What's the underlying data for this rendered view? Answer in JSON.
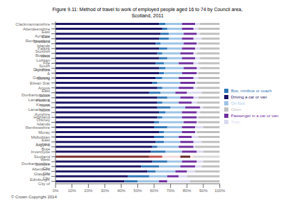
{
  "chart_data": {
    "type": "bar",
    "orientation": "horizontal",
    "stacked": true,
    "grid": false,
    "legend": "right",
    "title": "Figure 9.11: Method of travel to work of employed people aged 16 to 74 by Council area,\nScotland, 2011",
    "annotations": [
      "© Crown Copyright 2014"
    ],
    "categories": [
      "Clackmannanshire",
      "Aberdeenshire",
      "East Ayrshire",
      "East Renfrewshire",
      "Shetland Islands",
      "Falkirk",
      "Scottish Borders",
      "West Lothian",
      "Fife",
      "South Ayrshire",
      "Dumfries & Galloway",
      "Stirling",
      "Eilean Siar",
      "Angus",
      "East Dunbartonshire",
      "South Lanarkshire",
      "Perth & Kinross",
      "North Lanarkshire",
      "North Ayrshire",
      "Highland",
      "Orkney Islands",
      "Renfrewshire",
      "Moray",
      "Midlothian",
      "East Lothian",
      "Argyll & Bute",
      "Inverclyde",
      "Scotland",
      "West Dunbartonshire",
      "Dundee City",
      "Aberdeen City",
      "Glasgow City",
      "Edinburgh, City of"
    ],
    "series": [
      {
        "name": "Driving a car or van",
        "color": "#1b1464",
        "colors": [
          "#1b1464",
          "#1b1464",
          "#1b1464",
          "#1b1464",
          "#1b1464",
          "#1b1464",
          "#1b1464",
          "#1b1464",
          "#1b1464",
          "#1b1464",
          "#1b1464",
          "#1b1464",
          "#1b1464",
          "#1b1464",
          "#1b1464",
          "#1b1464",
          "#1b1464",
          "#1b1464",
          "#1b1464",
          "#1b1464",
          "#1b1464",
          "#1b1464",
          "#1b1464",
          "#1b1464",
          "#1b1464",
          "#1b1464",
          "#1b1464",
          "#7b2c2c",
          "#1b1464",
          "#1b1464",
          "#1b1464",
          "#1b1464",
          "#1b1464"
        ],
        "values": [
          63,
          65,
          64,
          63,
          61,
          63,
          62,
          63,
          61,
          63,
          63,
          61,
          59,
          62,
          57,
          62,
          62,
          62,
          63,
          62,
          60,
          60,
          63,
          60,
          61,
          59,
          58,
          57,
          59,
          52,
          56,
          44,
          42
        ]
      },
      {
        "name": "Bus, minibus or coach",
        "color": "#2e75b6",
        "colors": [
          "#2e75b6",
          "#2e75b6",
          "#2e75b6",
          "#2e75b6",
          "#2e75b6",
          "#2e75b6",
          "#2e75b6",
          "#2e75b6",
          "#2e75b6",
          "#2e75b6",
          "#2e75b6",
          "#2e75b6",
          "#2e75b6",
          "#2e75b6",
          "#2e75b6",
          "#2e75b6",
          "#2e75b6",
          "#2e75b6",
          "#2e75b6",
          "#2e75b6",
          "#2e75b6",
          "#2e75b6",
          "#2e75b6",
          "#2e75b6",
          "#2e75b6",
          "#2e75b6",
          "#2e75b6",
          "#c0504d",
          "#2e75b6",
          "#2e75b6",
          "#2e75b6",
          "#2e75b6",
          "#2e75b6"
        ],
        "values": [
          4,
          3,
          5,
          6,
          3,
          5,
          3,
          5,
          5,
          4,
          3,
          4,
          3,
          3,
          7,
          6,
          3,
          8,
          4,
          3,
          3,
          8,
          3,
          6,
          5,
          3,
          9,
          8,
          9,
          11,
          5,
          13,
          8
        ]
      },
      {
        "name": "On foot",
        "color": "#9dc3e6",
        "colors": [
          "#9dc3e6",
          "#9dc3e6",
          "#9dc3e6",
          "#9dc3e6",
          "#9dc3e6",
          "#9dc3e6",
          "#9dc3e6",
          "#9dc3e6",
          "#9dc3e6",
          "#9dc3e6",
          "#9dc3e6",
          "#9dc3e6",
          "#9dc3e6",
          "#9dc3e6",
          "#9dc3e6",
          "#9dc3e6",
          "#9dc3e6",
          "#9dc3e6",
          "#9dc3e6",
          "#9dc3e6",
          "#9dc3e6",
          "#9dc3e6",
          "#9dc3e6",
          "#9dc3e6",
          "#9dc3e6",
          "#9dc3e6",
          "#9dc3e6",
          "#f2dcdb",
          "#9dc3e6",
          "#9dc3e6",
          "#9dc3e6",
          "#9dc3e6",
          "#9dc3e6"
        ],
        "values": [
          10,
          9,
          9,
          8,
          14,
          9,
          11,
          9,
          9,
          11,
          11,
          10,
          14,
          10,
          9,
          8,
          10,
          9,
          10,
          12,
          15,
          9,
          11,
          9,
          10,
          13,
          10,
          11,
          9,
          13,
          12,
          11,
          13
        ]
      },
      {
        "name": "Passenger in a car or van",
        "color": "#7030a0",
        "colors": [
          "#7030a0",
          "#7030a0",
          "#7030a0",
          "#7030a0",
          "#7030a0",
          "#7030a0",
          "#7030a0",
          "#7030a0",
          "#7030a0",
          "#7030a0",
          "#7030a0",
          "#7030a0",
          "#7030a0",
          "#7030a0",
          "#7030a0",
          "#7030a0",
          "#7030a0",
          "#7030a0",
          "#7030a0",
          "#7030a0",
          "#7030a0",
          "#7030a0",
          "#7030a0",
          "#7030a0",
          "#7030a0",
          "#7030a0",
          "#7030a0",
          "#632523",
          "#7030a0",
          "#7030a0",
          "#7030a0",
          "#7030a0",
          "#7030a0"
        ],
        "values": [
          8,
          7,
          8,
          7,
          8,
          8,
          8,
          8,
          9,
          8,
          9,
          9,
          9,
          9,
          7,
          8,
          8,
          9,
          9,
          9,
          8,
          8,
          8,
          8,
          8,
          9,
          9,
          6,
          9,
          9,
          7,
          7,
          5
        ]
      },
      {
        "name": "Train",
        "color": "#d9d9f0",
        "colors": [
          "#d9d9f0",
          "#d9d9f0",
          "#d9d9f0",
          "#d9d9f0",
          "#d9d9f0",
          "#d9d9f0",
          "#d9d9f0",
          "#d9d9f0",
          "#d9d9f0",
          "#d9d9f0",
          "#d9d9f0",
          "#d9d9f0",
          "#d9d9f0",
          "#d9d9f0",
          "#d9d9f0",
          "#d9d9f0",
          "#d9d9f0",
          "#d9d9f0",
          "#d9d9f0",
          "#d9d9f0",
          "#d9d9f0",
          "#d9d9f0",
          "#d9d9f0",
          "#d9d9f0",
          "#d9d9f0",
          "#d9d9f0",
          "#d9d9f0",
          "#f2dcdb",
          "#d9d9f0",
          "#d9d9f0",
          "#d9d9f0",
          "#d9d9f0",
          "#d9d9f0"
        ],
        "values": [
          3,
          3,
          2,
          5,
          1,
          3,
          2,
          3,
          3,
          2,
          1,
          3,
          1,
          2,
          9,
          3,
          3,
          2,
          2,
          1,
          1,
          5,
          1,
          4,
          5,
          1,
          4,
          2,
          4,
          4,
          5,
          5,
          14
        ]
      },
      {
        "name": "Other",
        "color": "#bfbfbf",
        "colors": [
          "#bfbfbf",
          "#bfbfbf",
          "#bfbfbf",
          "#bfbfbf",
          "#bfbfbf",
          "#bfbfbf",
          "#bfbfbf",
          "#bfbfbf",
          "#bfbfbf",
          "#bfbfbf",
          "#bfbfbf",
          "#bfbfbf",
          "#bfbfbf",
          "#bfbfbf",
          "#bfbfbf",
          "#bfbfbf",
          "#bfbfbf",
          "#bfbfbf",
          "#bfbfbf",
          "#bfbfbf",
          "#bfbfbf",
          "#bfbfbf",
          "#bfbfbf",
          "#bfbfbf",
          "#bfbfbf",
          "#bfbfbf",
          "#bfbfbf",
          "#d9d9d9",
          "#bfbfbf",
          "#bfbfbf",
          "#bfbfbf",
          "#bfbfbf",
          "#bfbfbf"
        ],
        "values": [
          12,
          13,
          12,
          11,
          13,
          12,
          14,
          12,
          13,
          12,
          13,
          13,
          14,
          14,
          11,
          13,
          14,
          10,
          12,
          13,
          13,
          10,
          14,
          13,
          11,
          15,
          10,
          16,
          10,
          11,
          15,
          20,
          18
        ]
      }
    ],
    "xlim": [
      0,
      100
    ],
    "xticks": [
      {
        "value": 0,
        "label": "0%"
      },
      {
        "value": 10,
        "label": "10%"
      },
      {
        "value": 20,
        "label": "20%"
      },
      {
        "value": 30,
        "label": "30%"
      },
      {
        "value": 40,
        "label": "40%"
      },
      {
        "value": 50,
        "label": "50%"
      },
      {
        "value": 60,
        "label": "60%"
      },
      {
        "value": 70,
        "label": "70%"
      },
      {
        "value": 80,
        "label": "80%"
      },
      {
        "value": 90,
        "label": "90%"
      },
      {
        "value": 100,
        "label": "100%"
      }
    ]
  }
}
